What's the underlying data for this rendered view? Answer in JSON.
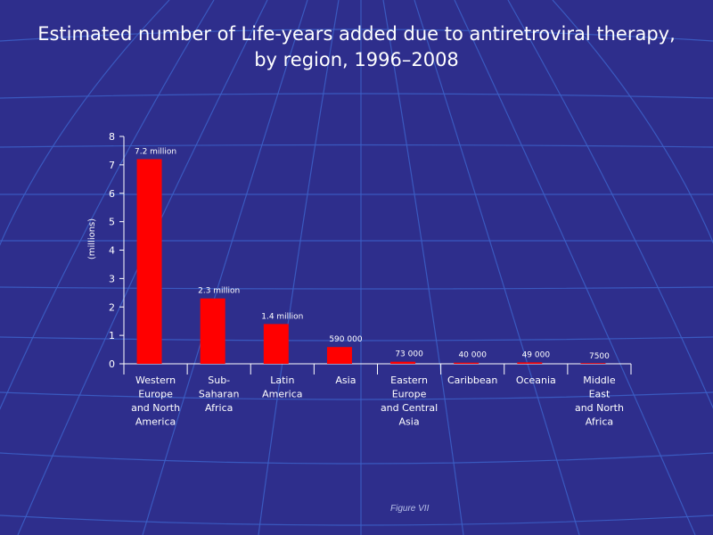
{
  "colors": {
    "background": "#2e2e8c",
    "grid": "#3c60c8",
    "bar": "#ff0000",
    "text": "#ffffff"
  },
  "chart_data": {
    "type": "bar",
    "title": "Estimated number of Life-years added due to antiretroviral therapy,",
    "subtitle": "by region, 1996–2008",
    "xlabel": "",
    "ylabel": "(millions)",
    "ylim": [
      0,
      8
    ],
    "yticks": [
      "0",
      "1",
      "2",
      "3",
      "4",
      "5",
      "6",
      "7",
      "8"
    ],
    "categories": [
      [
        "Western",
        "Europe",
        "and North",
        "America"
      ],
      [
        "Sub-",
        "Saharan",
        "Africa"
      ],
      [
        "Latin",
        "America"
      ],
      [
        "Asia"
      ],
      [
        "Eastern",
        "Europe",
        "and Central",
        "Asia"
      ],
      [
        "Caribbean"
      ],
      [
        "Oceania"
      ],
      [
        "Middle",
        "East",
        "and North",
        "Africa"
      ]
    ],
    "values": [
      7.2,
      2.3,
      1.4,
      0.59,
      0.073,
      0.04,
      0.049,
      0.0075
    ],
    "data_labels": [
      "7.2 million",
      "2.3 million",
      "1.4 million",
      "590 000",
      "73 000",
      "40 000",
      "49 000",
      "7500"
    ],
    "grid": false
  },
  "footer": {
    "figure_label": "Figure VII"
  }
}
